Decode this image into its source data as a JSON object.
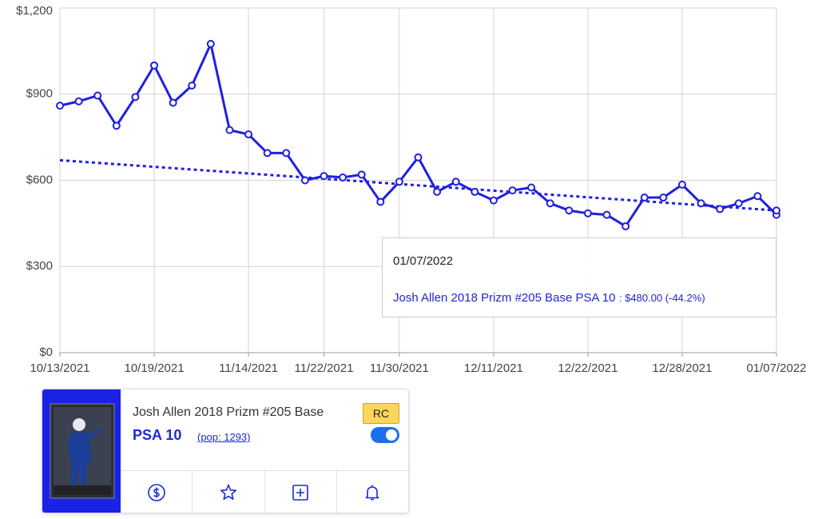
{
  "chart_data": {
    "type": "line",
    "categories": [
      "10/13/2021",
      null,
      null,
      null,
      null,
      "10/19/2021",
      null,
      null,
      null,
      null,
      "11/14/2021",
      null,
      null,
      null,
      "11/22/2021",
      null,
      null,
      null,
      "11/30/2021",
      null,
      null,
      null,
      null,
      "12/11/2021",
      null,
      null,
      null,
      null,
      "12/22/2021",
      null,
      null,
      null,
      null,
      "12/28/2021",
      null,
      null,
      null,
      null,
      "01/07/2022"
    ],
    "series": [
      {
        "name": "Josh Allen 2018 Prizm #205 Base PSA 10",
        "color": "#2020e0",
        "values": [
          860,
          875,
          895,
          790,
          890,
          1000,
          870,
          930,
          1075,
          775,
          760,
          695,
          695,
          600,
          615,
          610,
          620,
          525,
          595,
          680,
          560,
          595,
          560,
          530,
          565,
          575,
          520,
          495,
          485,
          480,
          440,
          540,
          540,
          585,
          520,
          500,
          520,
          545,
          480
        ]
      }
    ],
    "trendline": {
      "values": [
        670,
        495
      ],
      "color": "#2020e0"
    },
    "ylim": [
      0,
      1200
    ],
    "yticks": [
      {
        "value": 0,
        "label": "$0"
      },
      {
        "value": 300,
        "label": "$300"
      },
      {
        "value": 600,
        "label": "$600"
      },
      {
        "value": 900,
        "label": "$900"
      },
      {
        "value": 1200,
        "label": "$1,200"
      }
    ],
    "grid": true,
    "tooltip": {
      "date": "01/07/2022",
      "detail": ": $480.00 (-44.2%)"
    }
  },
  "card": {
    "title": "Josh Allen 2018 Prizm #205 Base",
    "grade": "PSA 10",
    "pop": "(pop: 1293)",
    "badge": "RC"
  }
}
